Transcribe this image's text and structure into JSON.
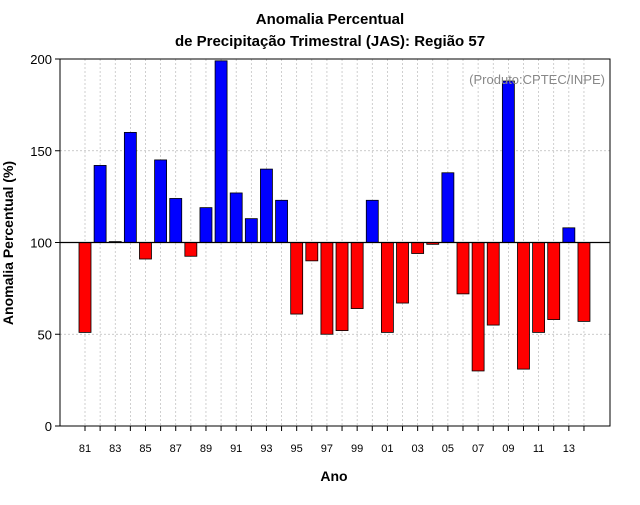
{
  "chart_data": {
    "type": "bar",
    "title_line1": "Anomalia Percentual",
    "title_line2": "de Precipitação Trimestral (JAS): Região 57",
    "annotation": "(Produto:CPTEC/INPE)",
    "xlabel": "Ano",
    "ylabel": "Anomalia Percentual (%)",
    "ylim": [
      0,
      200
    ],
    "yticks": [
      0,
      50,
      100,
      150,
      200
    ],
    "baseline": 100,
    "grid": true,
    "colors": {
      "above": "#0000ff",
      "below": "#ff0000",
      "outline": "#000000",
      "grid": "#bbbbbb"
    },
    "categories": [
      "81",
      "82",
      "83",
      "84",
      "85",
      "86",
      "87",
      "88",
      "89",
      "90",
      "91",
      "92",
      "93",
      "94",
      "95",
      "96",
      "97",
      "98",
      "99",
      "00",
      "01",
      "02",
      "03",
      "04",
      "05",
      "06",
      "07",
      "08",
      "09",
      "10",
      "11",
      "12",
      "13",
      "14"
    ],
    "tick_labels": [
      "81",
      "83",
      "85",
      "87",
      "89",
      "91",
      "93",
      "95",
      "97",
      "99",
      "01",
      "03",
      "05",
      "07",
      "09",
      "11",
      "13"
    ],
    "values": [
      51,
      142,
      100.5,
      160,
      91,
      145,
      124,
      92.5,
      119,
      199,
      127,
      113,
      140,
      123,
      61,
      90,
      50,
      52,
      64,
      123,
      51,
      67,
      94,
      99,
      138,
      72,
      30,
      55,
      188,
      31,
      51,
      58,
      108,
      57
    ]
  }
}
